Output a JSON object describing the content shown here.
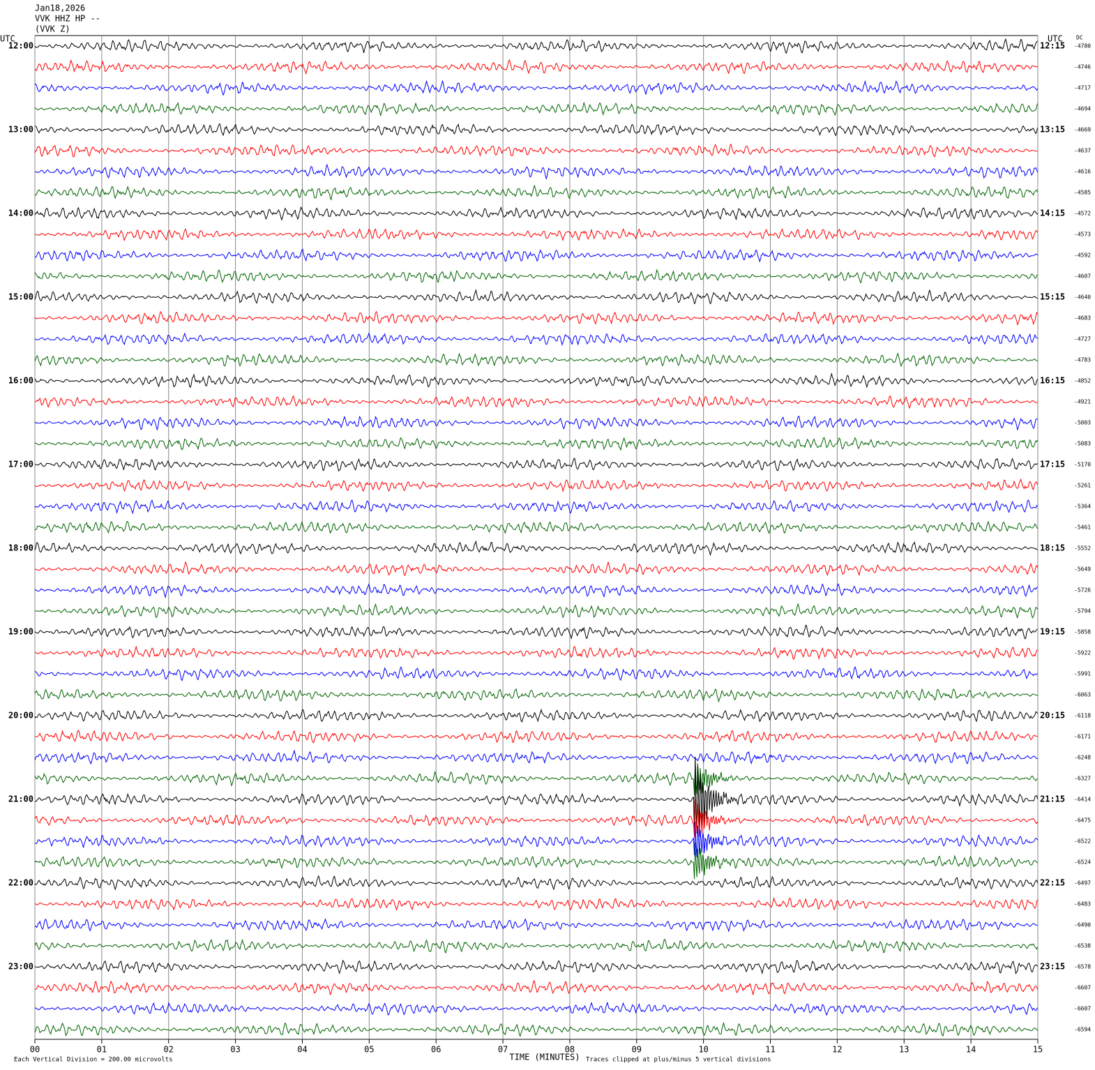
{
  "chart_data": {
    "type": "seismogram",
    "header": [
      "Jan18,2026",
      "VVK HHZ HP --",
      "(VVK Z)"
    ],
    "left_axis_label": "UTC",
    "right_axis_label": "UTC",
    "dc_label": "DC",
    "xlabel": "TIME (MINUTES)",
    "scale_note": "Each Vertical Division =  200.00 microvolts",
    "clip_note": "Traces clipped at plus/minus 5 vertical divisions",
    "xlim": [
      0,
      15
    ],
    "xticks": [
      {
        "value": 0,
        "label": "00"
      },
      {
        "value": 1,
        "label": "01"
      },
      {
        "value": 2,
        "label": "02"
      },
      {
        "value": 3,
        "label": "03"
      },
      {
        "value": 4,
        "label": "04"
      },
      {
        "value": 5,
        "label": "05"
      },
      {
        "value": 6,
        "label": "06"
      },
      {
        "value": 7,
        "label": "07"
      },
      {
        "value": 8,
        "label": "08"
      },
      {
        "value": 9,
        "label": "09"
      },
      {
        "value": 10,
        "label": "10"
      },
      {
        "value": 11,
        "label": "11"
      },
      {
        "value": 12,
        "label": "12"
      },
      {
        "value": 13,
        "label": "13"
      },
      {
        "value": 14,
        "label": "14"
      },
      {
        "value": 15,
        "label": "15"
      }
    ],
    "hours": [
      {
        "left": "12:00",
        "right": "12:15"
      },
      {
        "left": "13:00",
        "right": "13:15"
      },
      {
        "left": "14:00",
        "right": "14:15"
      },
      {
        "left": "15:00",
        "right": "15:15"
      },
      {
        "left": "16:00",
        "right": "16:15"
      },
      {
        "left": "17:00",
        "right": "17:15"
      },
      {
        "left": "18:00",
        "right": "18:15"
      },
      {
        "left": "19:00",
        "right": "19:15"
      },
      {
        "left": "20:00",
        "right": "20:15"
      },
      {
        "left": "21:00",
        "right": "21:15"
      },
      {
        "left": "22:00",
        "right": "22:15"
      },
      {
        "left": "23:00",
        "right": "23:15"
      }
    ],
    "trace_colors": [
      "#000000",
      "#ff0000",
      "#0000ff",
      "#006400"
    ],
    "dc_offsets": [
      -4780,
      -4746,
      -4717,
      -4694,
      -4669,
      -4637,
      -4616,
      -4585,
      -4572,
      -4573,
      -4592,
      -4607,
      -4640,
      -4683,
      -4727,
      -4783,
      -4852,
      -4921,
      -5003,
      -5083,
      -5170,
      -5261,
      -5364,
      -5461,
      -5552,
      -5649,
      -5726,
      -5794,
      -5858,
      -5922,
      -5991,
      -6063,
      -6118,
      -6171,
      -6248,
      -6327,
      -6414,
      -6475,
      -6522,
      -6524,
      -6497,
      -6483,
      -6490,
      -6538,
      -6578,
      -6607,
      -6607,
      -6594
    ]
  }
}
